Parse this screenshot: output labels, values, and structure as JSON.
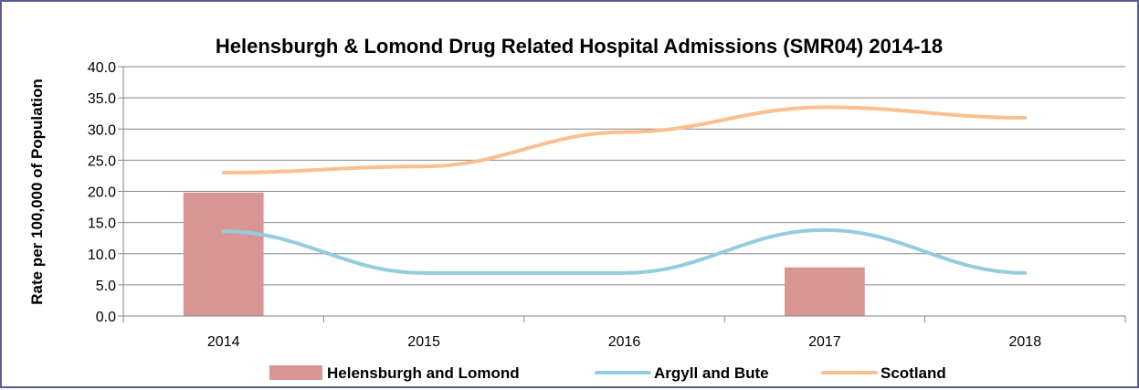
{
  "chart_data": {
    "type": "bar",
    "title": "Helensburgh & Lomond Drug Related Hospital Admissions (SMR04) 2014-18",
    "xlabel": "",
    "ylabel": "Rate per 100,000 of Population",
    "categories": [
      "2014",
      "2015",
      "2016",
      "2017",
      "2018"
    ],
    "ylim": [
      0,
      40
    ],
    "yticks": [
      "0.0",
      "5.0",
      "10.0",
      "15.0",
      "20.0",
      "25.0",
      "30.0",
      "35.0",
      "40.0"
    ],
    "grid": true,
    "legend_position": "bottom",
    "series": [
      {
        "name": "Helensburgh and Lomond",
        "type": "bar",
        "color": "#d99594",
        "values": [
          19.8,
          null,
          null,
          7.8,
          null
        ]
      },
      {
        "name": "Argyll and Bute",
        "type": "line",
        "color": "#93cddd",
        "values": [
          13.6,
          6.9,
          6.9,
          13.8,
          6.9
        ]
      },
      {
        "name": "Scotland",
        "type": "line",
        "color": "#fac090",
        "values": [
          23.0,
          24.0,
          29.5,
          33.5,
          31.8
        ]
      }
    ]
  }
}
